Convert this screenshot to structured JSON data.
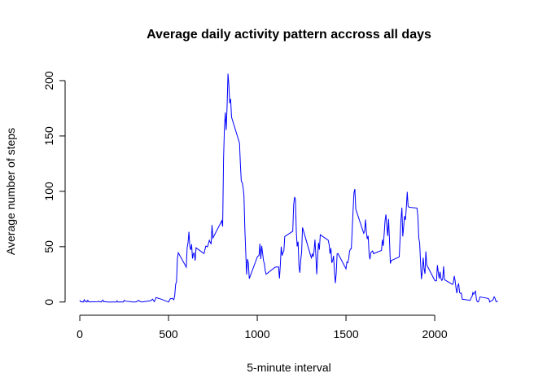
{
  "chart_data": {
    "type": "line",
    "title": "Average daily activity pattern accross all days",
    "x_label": "5-minute interval",
    "y_label": "Average number of steps",
    "color": "#0000ff",
    "xlim": [
      -94.2,
      2449.2
    ],
    "ylim": [
      -8.25,
      214.4
    ],
    "xticks": [
      0,
      500,
      1000,
      1500,
      2000
    ],
    "yticks": [
      0,
      50,
      100,
      150,
      200
    ],
    "x": [
      0,
      5,
      10,
      15,
      20,
      25,
      30,
      35,
      40,
      45,
      50,
      55,
      100,
      105,
      110,
      115,
      120,
      125,
      130,
      135,
      140,
      145,
      150,
      155,
      200,
      205,
      210,
      215,
      220,
      225,
      230,
      235,
      240,
      245,
      250,
      255,
      300,
      310,
      320,
      330,
      340,
      350,
      400,
      410,
      420,
      430,
      440,
      450,
      500,
      510,
      520,
      530,
      535,
      540,
      545,
      550,
      555,
      600,
      605,
      610,
      615,
      620,
      625,
      630,
      635,
      640,
      645,
      650,
      655,
      700,
      710,
      720,
      730,
      740,
      745,
      750,
      800,
      805,
      810,
      815,
      820,
      825,
      830,
      835,
      840,
      845,
      850,
      855,
      900,
      905,
      910,
      915,
      920,
      925,
      930,
      935,
      940,
      945,
      950,
      955,
      1000,
      1010,
      1015,
      1020,
      1025,
      1030,
      1035,
      1040,
      1045,
      1050,
      1100,
      1110,
      1120,
      1125,
      1130,
      1135,
      1140,
      1145,
      1150,
      1155,
      1200,
      1205,
      1210,
      1215,
      1220,
      1225,
      1230,
      1235,
      1240,
      1245,
      1250,
      1255,
      1300,
      1305,
      1310,
      1315,
      1320,
      1325,
      1330,
      1335,
      1340,
      1345,
      1350,
      1355,
      1400,
      1405,
      1410,
      1415,
      1420,
      1425,
      1430,
      1435,
      1440,
      1445,
      1450,
      1455,
      1500,
      1505,
      1510,
      1515,
      1520,
      1525,
      1530,
      1535,
      1540,
      1545,
      1550,
      1555,
      1600,
      1605,
      1610,
      1615,
      1620,
      1625,
      1630,
      1635,
      1640,
      1645,
      1650,
      1655,
      1700,
      1705,
      1710,
      1715,
      1720,
      1725,
      1730,
      1735,
      1740,
      1745,
      1750,
      1755,
      1800,
      1805,
      1810,
      1815,
      1820,
      1825,
      1830,
      1835,
      1840,
      1845,
      1850,
      1855,
      1900,
      1905,
      1910,
      1915,
      1920,
      1925,
      1930,
      1935,
      1940,
      1945,
      1950,
      1955,
      2000,
      2005,
      2010,
      2015,
      2020,
      2025,
      2030,
      2035,
      2040,
      2045,
      2050,
      2055,
      2100,
      2105,
      2110,
      2115,
      2120,
      2125,
      2130,
      2135,
      2140,
      2145,
      2150,
      2155,
      2200,
      2205,
      2210,
      2215,
      2220,
      2225,
      2230,
      2235,
      2240,
      2245,
      2250,
      2255,
      2300,
      2305,
      2310,
      2315,
      2320,
      2325,
      2330,
      2335,
      2340,
      2345,
      2350,
      2355
    ],
    "values": [
      1.7,
      0.3,
      0.1,
      0.2,
      0.1,
      2.1,
      0.5,
      0.9,
      0,
      1.5,
      0.3,
      0.1,
      0.3,
      0.7,
      0.2,
      0.3,
      0,
      1.1,
      1.8,
      0.2,
      0.2,
      0.4,
      0.3,
      0,
      0,
      0,
      1.1,
      0,
      0,
      0.1,
      0,
      0.2,
      0,
      0,
      1.5,
      0.9,
      0,
      0,
      0.2,
      1.6,
      0.5,
      0,
      1.2,
      2.6,
      0.3,
      4.1,
      3.5,
      3.1,
      0,
      3,
      3.3,
      2.1,
      6.1,
      16,
      18.3,
      39.5,
      44.5,
      31.5,
      49.3,
      53.8,
      63.5,
      50,
      47.1,
      52.2,
      39.3,
      44,
      44.2,
      37.4,
      49,
      43.8,
      50.5,
      49.9,
      55.7,
      52.3,
      69.5,
      57.8,
      73.4,
      68.2,
      129.4,
      157.5,
      171.2,
      155.4,
      177.3,
      206.2,
      195.9,
      179.6,
      183.4,
      167,
      143.5,
      124,
      109.1,
      108.1,
      103.7,
      95.9,
      66.2,
      45.2,
      24.8,
      38.8,
      35,
      21.1,
      40.6,
      42.4,
      52.7,
      38.9,
      50.8,
      44.3,
      37.4,
      34.7,
      28.3,
      25.1,
      31.4,
      31.7,
      31.7,
      21.3,
      33.5,
      50,
      42,
      44.6,
      46.2,
      59.2,
      63.9,
      87.7,
      94.8,
      92.8,
      63.4,
      50.2,
      54.5,
      32.4,
      26.5,
      37.7,
      45.1,
      67.3,
      42.3,
      39.9,
      43.3,
      40.9,
      46.2,
      56.4,
      42.8,
      25.1,
      39.9,
      53.5,
      47.3,
      60.8,
      55.8,
      51.9,
      43.6,
      48.7,
      35.5,
      37.5,
      41.8,
      27.5,
      17.1,
      26.1,
      43.6,
      43.8,
      30,
      36.1,
      35.5,
      38.8,
      45.9,
      47.8,
      48.1,
      65.3,
      82.9,
      98.7,
      102.1,
      84,
      62.1,
      64.1,
      74.5,
      63.2,
      56.9,
      59.8,
      43.9,
      38.6,
      44.7,
      45.5,
      46.2,
      43.7,
      46.6,
      56.3,
      50.7,
      61.2,
      73.4,
      79.1,
      68.9,
      59.7,
      75.1,
      56.5,
      34.8,
      37.5,
      40.7,
      58,
      74.7,
      85.3,
      59.3,
      67.8,
      77.7,
      74.2,
      85.3,
      99.5,
      86.6,
      85.6,
      84.9,
      77.8,
      58,
      53.4,
      36.3,
      20.7,
      27.4,
      40,
      30.2,
      25.5,
      45.7,
      33.5,
      19.6,
      19,
      19.3,
      33.3,
      26.8,
      21.2,
      27.3,
      21.3,
      19.5,
      21.3,
      32.3,
      20.2,
      15.9,
      17.2,
      23.5,
      19.2,
      12.5,
      8,
      14.7,
      16.3,
      8.7,
      7.8,
      8.1,
      2.6,
      1.5,
      3.7,
      4.8,
      8.5,
      7.1,
      8.7,
      9.8,
      2.2,
      0.3,
      0.1,
      1.6,
      4.6,
      3.3,
      2.8,
      0,
      0.8,
      1,
      1.6,
      2.6,
      4.7,
      3.3,
      0.6,
      0.2,
      1.1
    ]
  }
}
